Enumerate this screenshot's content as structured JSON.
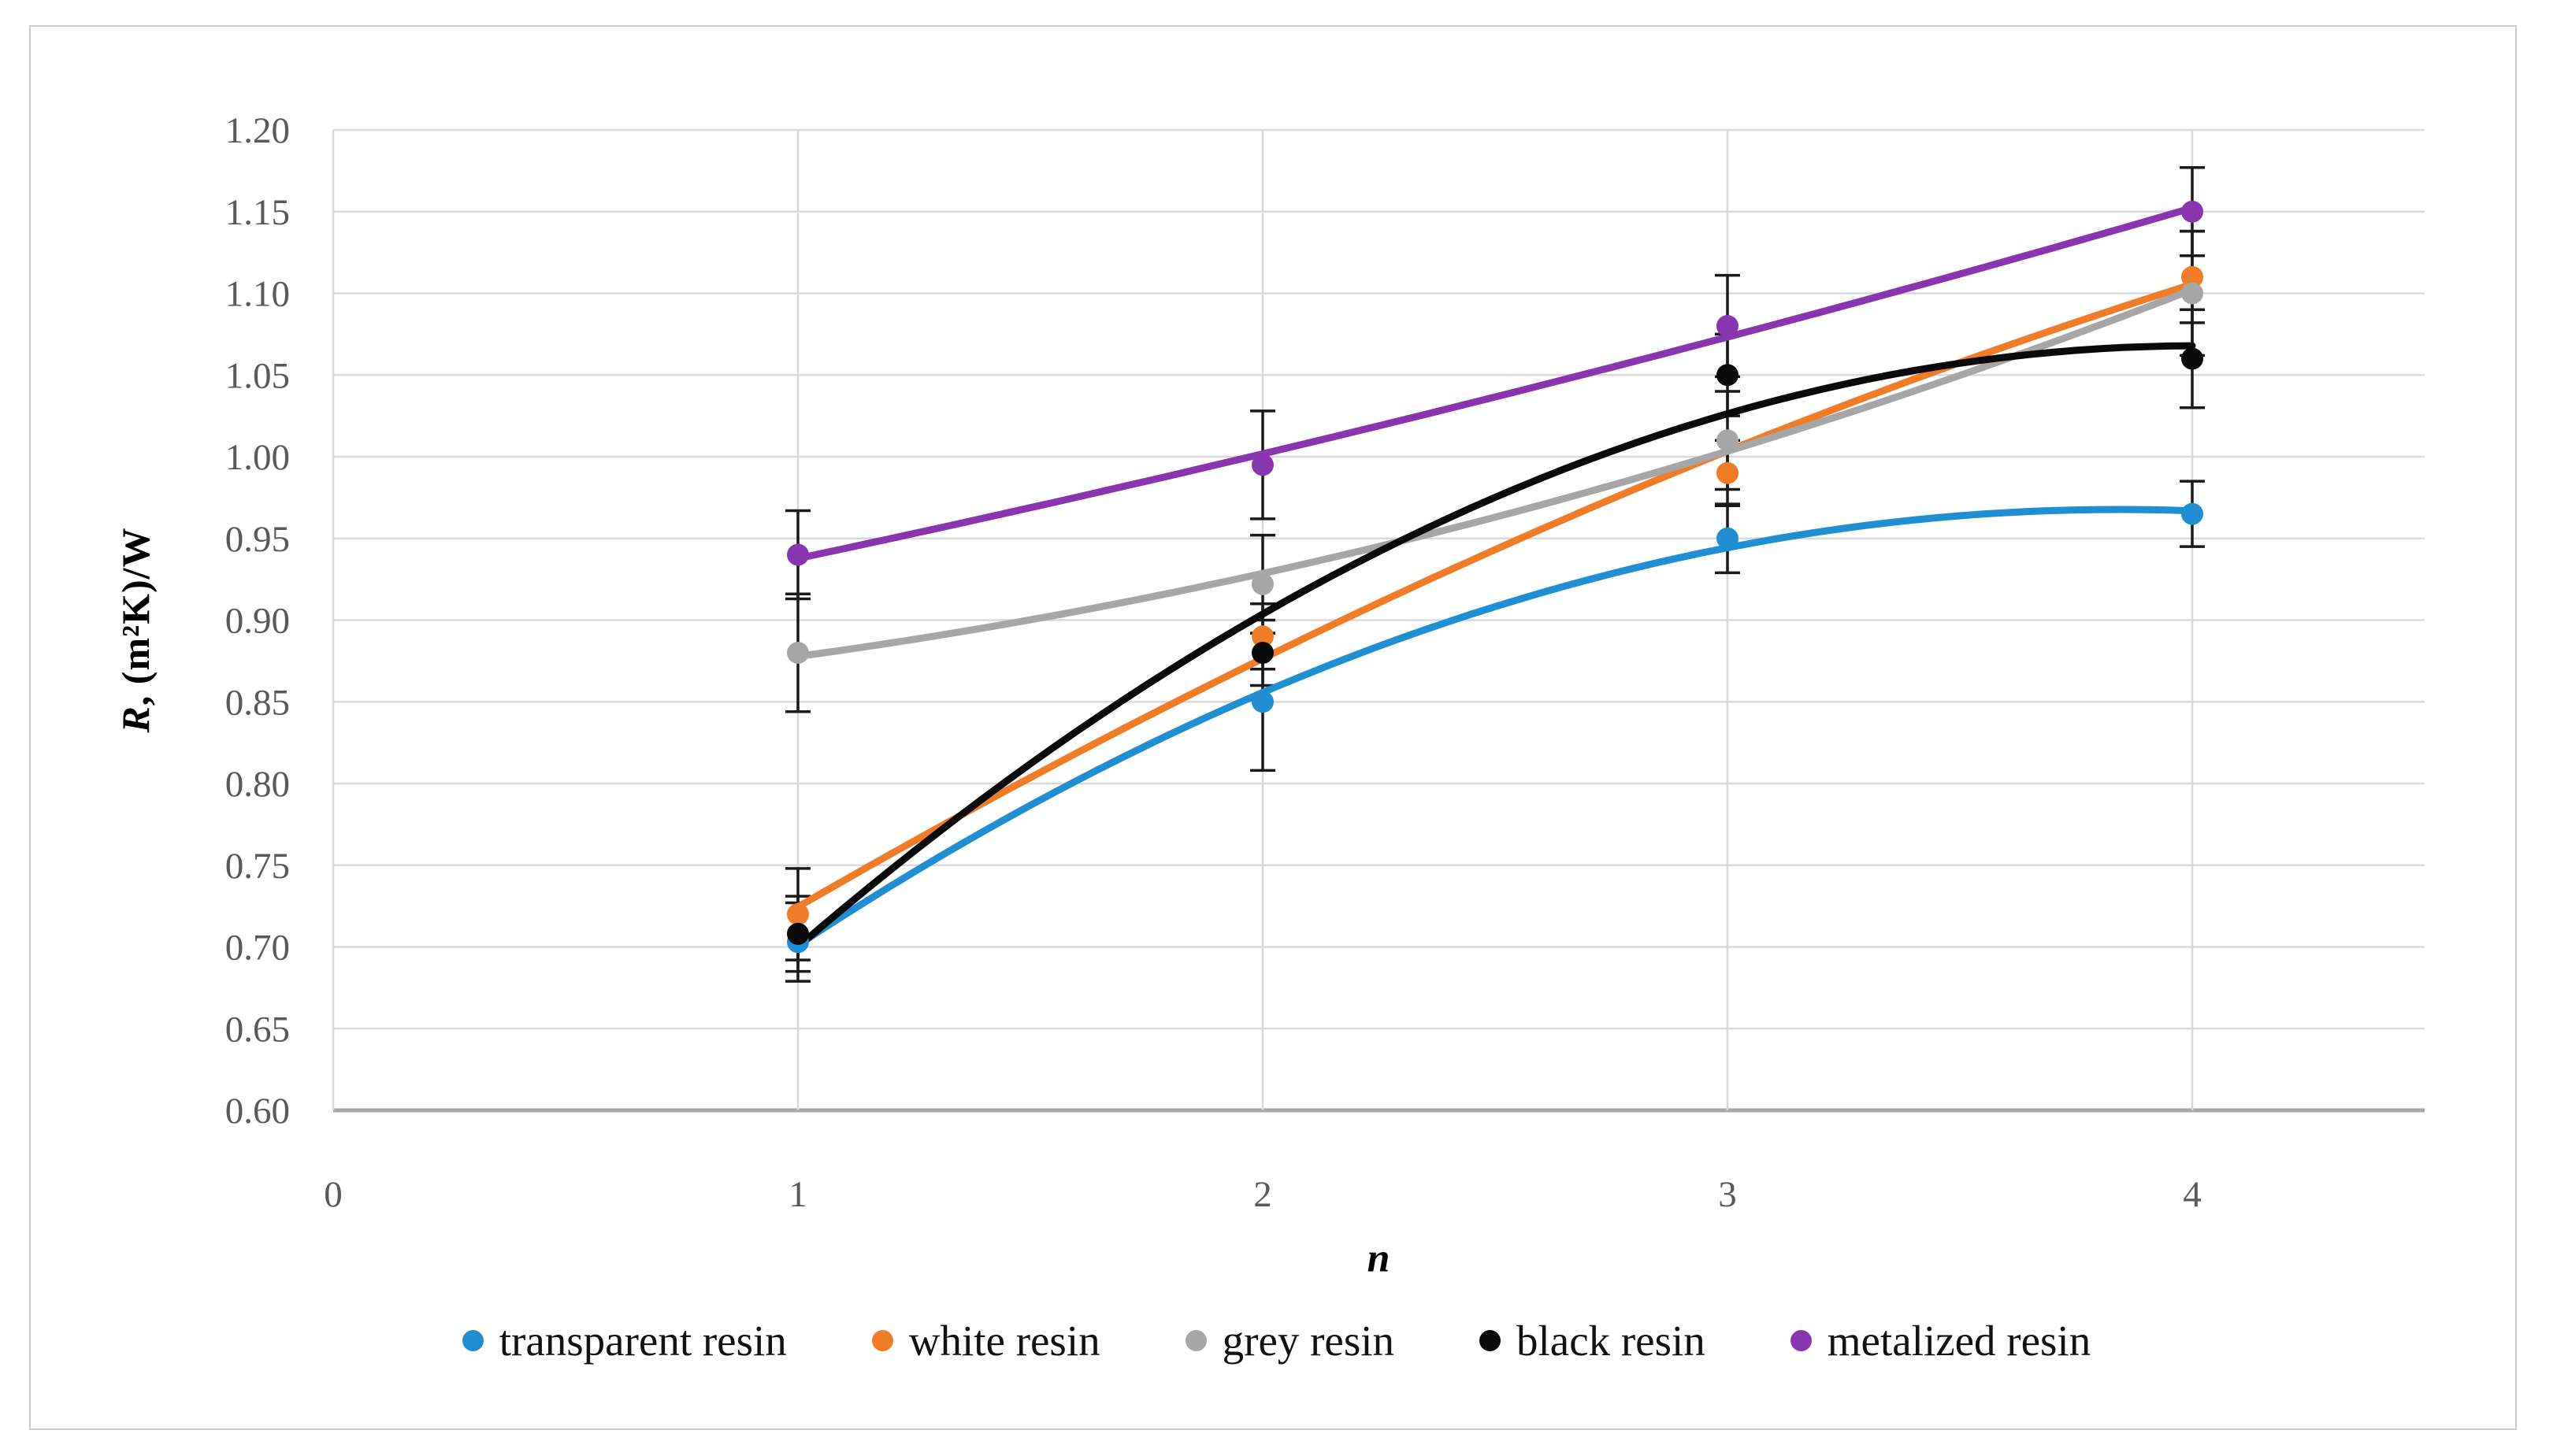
{
  "figure": {
    "background": "#ffffff",
    "border_color": "#c9c9c9"
  },
  "chart_data": {
    "type": "scatter",
    "trend": "quadratic-fit",
    "x": [
      1,
      2,
      3,
      4
    ],
    "xlabel": "n",
    "ylabel": "R, (m²K)/W",
    "ylabel_parts": {
      "var": "R",
      "rest": ", (m²K)/W"
    },
    "xlim": [
      0,
      4.5
    ],
    "ylim": [
      0.6,
      1.2
    ],
    "x_ticks": [
      0,
      1,
      2,
      3,
      4
    ],
    "y_tick_step": 0.05,
    "grid": true,
    "legend_position": "bottom",
    "axis_text_color": "#595959",
    "grid_color": "#d9d9d9",
    "axis_line_color": "#a6a6a6",
    "error_bar_color": "#1a1a1a",
    "series": [
      {
        "name": "transparent resin",
        "color": "#1f8ed3",
        "values": [
          0.703,
          0.85,
          0.95,
          0.965
        ],
        "errors": [
          0.024,
          0.042,
          0.021,
          0.02
        ]
      },
      {
        "name": "white resin",
        "color": "#f07c28",
        "values": [
          0.72,
          0.89,
          0.99,
          1.11
        ],
        "errors": [
          0.028,
          0.02,
          0.02,
          0.028
        ]
      },
      {
        "name": "grey resin",
        "color": "#a6a6a6",
        "values": [
          0.88,
          0.922,
          1.01,
          1.1
        ],
        "errors": [
          0.036,
          0.03,
          0.03,
          0.038
        ]
      },
      {
        "name": "black resin",
        "color": "#0a0a0a",
        "values": [
          0.708,
          0.88,
          1.05,
          1.06
        ],
        "errors": [
          0.023,
          0.02,
          0.025,
          0.03
        ]
      },
      {
        "name": "metalized resin",
        "color": "#8a35b0",
        "values": [
          0.94,
          0.995,
          1.08,
          1.15
        ],
        "errors": [
          0.027,
          0.033,
          0.031,
          0.027
        ]
      }
    ]
  }
}
